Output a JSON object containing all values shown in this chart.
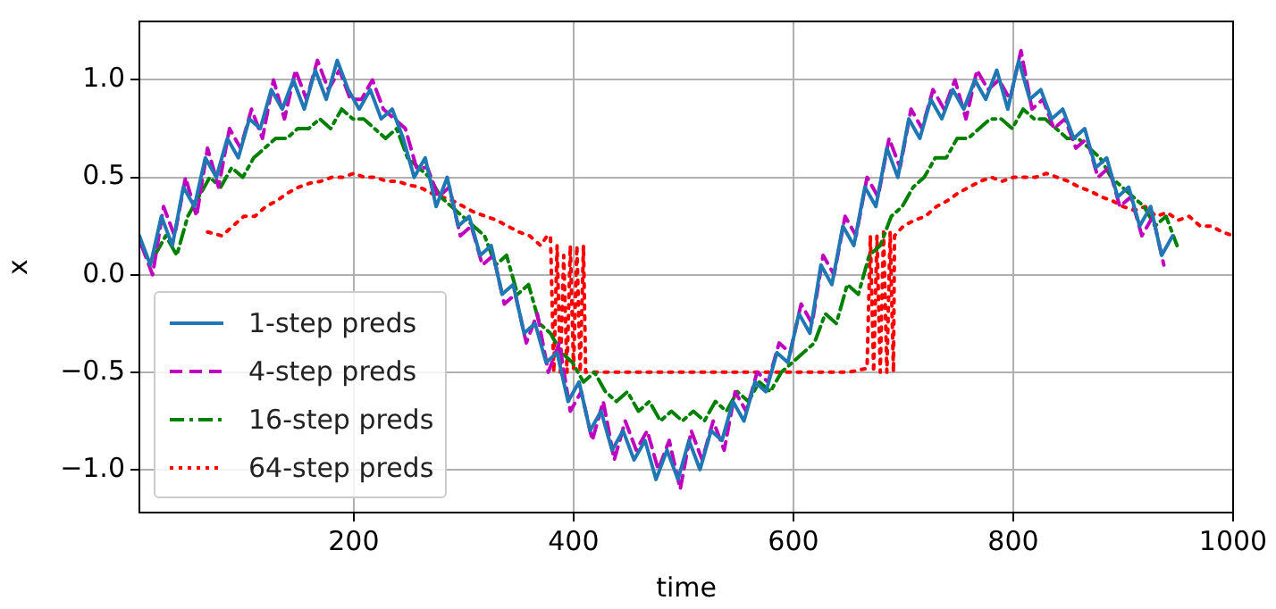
{
  "chart_data": {
    "type": "line",
    "xlabel": "time",
    "ylabel": "x",
    "xlim": [
      5,
      1000
    ],
    "ylim": [
      -1.22,
      1.3
    ],
    "xticks": [
      200,
      400,
      600,
      800,
      1000
    ],
    "yticks": [
      {
        "value": -1,
        "label": "−1.0"
      },
      {
        "value": -0.5,
        "label": "−0.5"
      },
      {
        "value": 0,
        "label": "0.0"
      },
      {
        "value": 0.5,
        "label": "0.5"
      },
      {
        "value": 1,
        "label": "1.0"
      }
    ],
    "grid": true,
    "legend": "bottom left",
    "marker": "none",
    "series": [
      {
        "name": "1-step preds",
        "color": "#1f77b4",
        "line_style": "solid",
        "x": [
          5,
          15,
          25,
          35,
          45,
          55,
          65,
          75,
          85,
          95,
          105,
          115,
          125,
          135,
          145,
          155,
          165,
          175,
          185,
          195,
          205,
          215,
          225,
          235,
          245,
          255,
          265,
          275,
          285,
          295,
          305,
          315,
          325,
          335,
          345,
          355,
          365,
          375,
          385,
          395,
          405,
          415,
          425,
          435,
          445,
          455,
          465,
          475,
          485,
          495,
          505,
          515,
          525,
          535,
          545,
          555,
          565,
          575,
          585,
          595,
          605,
          615,
          625,
          635,
          645,
          655,
          665,
          675,
          685,
          695,
          705,
          715,
          725,
          735,
          745,
          755,
          765,
          775,
          785,
          795,
          805,
          815,
          825,
          835,
          845,
          855,
          865,
          875,
          885,
          895,
          905,
          915,
          925,
          935,
          945
        ],
        "values": [
          0.2,
          0.05,
          0.3,
          0.15,
          0.45,
          0.35,
          0.6,
          0.5,
          0.7,
          0.6,
          0.8,
          0.75,
          0.95,
          0.85,
          1.0,
          0.85,
          1.05,
          0.9,
          1.1,
          0.95,
          0.85,
          0.95,
          0.8,
          0.85,
          0.7,
          0.5,
          0.6,
          0.35,
          0.5,
          0.25,
          0.3,
          0.1,
          0.15,
          -0.1,
          -0.05,
          -0.3,
          -0.25,
          -0.45,
          -0.4,
          -0.65,
          -0.55,
          -0.8,
          -0.7,
          -0.9,
          -0.8,
          -0.95,
          -0.85,
          -1.05,
          -0.9,
          -1.05,
          -0.85,
          -1.0,
          -0.8,
          -0.85,
          -0.65,
          -0.75,
          -0.55,
          -0.6,
          -0.4,
          -0.45,
          -0.2,
          -0.3,
          0.05,
          -0.05,
          0.25,
          0.15,
          0.45,
          0.35,
          0.65,
          0.5,
          0.8,
          0.7,
          0.9,
          0.8,
          0.95,
          0.85,
          1.0,
          0.9,
          1.05,
          0.85,
          1.1,
          0.9,
          0.95,
          0.8,
          0.85,
          0.7,
          0.75,
          0.55,
          0.6,
          0.4,
          0.45,
          0.25,
          0.35,
          0.1,
          0.2
        ]
      },
      {
        "name": "4-step preds",
        "color": "#bf00bf",
        "line_style": "dashed",
        "x": [
          7,
          17,
          27,
          37,
          47,
          57,
          67,
          77,
          87,
          97,
          107,
          117,
          127,
          137,
          147,
          157,
          167,
          177,
          187,
          197,
          207,
          217,
          227,
          237,
          247,
          257,
          267,
          277,
          287,
          297,
          307,
          317,
          327,
          337,
          347,
          357,
          367,
          377,
          387,
          397,
          407,
          417,
          427,
          437,
          447,
          457,
          467,
          477,
          487,
          497,
          507,
          517,
          527,
          537,
          547,
          557,
          567,
          577,
          587,
          597,
          607,
          617,
          627,
          637,
          647,
          657,
          667,
          677,
          687,
          697,
          707,
          717,
          727,
          737,
          747,
          757,
          767,
          777,
          787,
          797,
          807,
          817,
          827,
          837,
          847,
          857,
          867,
          877,
          887,
          897,
          907,
          917,
          927,
          937
        ],
        "values": [
          0.15,
          0.0,
          0.35,
          0.2,
          0.5,
          0.3,
          0.65,
          0.45,
          0.75,
          0.65,
          0.85,
          0.7,
          1.0,
          0.8,
          1.05,
          0.9,
          1.1,
          0.95,
          1.05,
          0.9,
          0.9,
          1.0,
          0.85,
          0.8,
          0.75,
          0.55,
          0.55,
          0.4,
          0.45,
          0.2,
          0.25,
          0.05,
          0.1,
          -0.15,
          -0.1,
          -0.35,
          -0.2,
          -0.5,
          -0.35,
          -0.7,
          -0.6,
          -0.85,
          -0.65,
          -0.95,
          -0.75,
          -0.9,
          -0.8,
          -1.0,
          -0.85,
          -1.1,
          -0.8,
          -0.95,
          -0.75,
          -0.9,
          -0.6,
          -0.7,
          -0.5,
          -0.55,
          -0.35,
          -0.4,
          -0.15,
          -0.25,
          0.1,
          0.0,
          0.3,
          0.2,
          0.5,
          0.4,
          0.7,
          0.55,
          0.85,
          0.75,
          0.95,
          0.85,
          1.0,
          0.8,
          1.05,
          0.95,
          1.0,
          0.9,
          1.15,
          0.85,
          0.9,
          0.75,
          0.8,
          0.65,
          0.7,
          0.5,
          0.55,
          0.35,
          0.4,
          0.2,
          0.3,
          0.05
        ]
      },
      {
        "name": "16-step preds",
        "color": "#008000",
        "line_style": "dashdot",
        "x": [
          19,
          29,
          39,
          49,
          59,
          69,
          79,
          89,
          99,
          109,
          119,
          129,
          139,
          149,
          159,
          169,
          179,
          189,
          199,
          209,
          219,
          229,
          239,
          249,
          259,
          269,
          279,
          289,
          299,
          309,
          319,
          329,
          339,
          349,
          359,
          369,
          379,
          389,
          399,
          409,
          419,
          429,
          439,
          449,
          459,
          469,
          479,
          489,
          499,
          509,
          519,
          529,
          539,
          549,
          559,
          569,
          579,
          589,
          599,
          609,
          619,
          629,
          639,
          649,
          659,
          669,
          679,
          689,
          699,
          709,
          719,
          729,
          739,
          749,
          759,
          769,
          779,
          789,
          799,
          809,
          819,
          829,
          839,
          849,
          859,
          869,
          879,
          889,
          899,
          909,
          919,
          929,
          939,
          949
        ],
        "values": [
          0.1,
          0.2,
          0.1,
          0.3,
          0.4,
          0.5,
          0.45,
          0.55,
          0.5,
          0.6,
          0.65,
          0.7,
          0.7,
          0.75,
          0.75,
          0.8,
          0.75,
          0.85,
          0.8,
          0.8,
          0.75,
          0.7,
          0.75,
          0.6,
          0.55,
          0.5,
          0.4,
          0.35,
          0.3,
          0.25,
          0.2,
          0.05,
          0.1,
          -0.1,
          -0.05,
          -0.25,
          -0.3,
          -0.4,
          -0.45,
          -0.55,
          -0.5,
          -0.6,
          -0.65,
          -0.6,
          -0.7,
          -0.65,
          -0.75,
          -0.7,
          -0.75,
          -0.7,
          -0.75,
          -0.65,
          -0.7,
          -0.6,
          -0.65,
          -0.55,
          -0.6,
          -0.5,
          -0.45,
          -0.4,
          -0.35,
          -0.2,
          -0.25,
          -0.05,
          -0.1,
          0.1,
          0.15,
          0.3,
          0.35,
          0.45,
          0.5,
          0.6,
          0.6,
          0.7,
          0.7,
          0.75,
          0.8,
          0.8,
          0.75,
          0.85,
          0.8,
          0.8,
          0.75,
          0.7,
          0.7,
          0.65,
          0.6,
          0.5,
          0.45,
          0.4,
          0.35,
          0.25,
          0.3,
          0.15
        ]
      },
      {
        "name": "64-step preds",
        "color": "#ff0000",
        "line_style": "dotted",
        "x": [
          67,
          80,
          90,
          100,
          110,
          120,
          130,
          140,
          150,
          160,
          170,
          180,
          190,
          200,
          210,
          220,
          230,
          240,
          250,
          260,
          270,
          280,
          290,
          300,
          310,
          320,
          330,
          340,
          350,
          360,
          370,
          376,
          379,
          382,
          385,
          388,
          391,
          394,
          397,
          400,
          403,
          406,
          409,
          411,
          430,
          500,
          600,
          650,
          667,
          670,
          673,
          676,
          679,
          682,
          685,
          688,
          691,
          692,
          700,
          710,
          720,
          730,
          740,
          750,
          760,
          770,
          780,
          790,
          800,
          810,
          820,
          830,
          840,
          850,
          860,
          870,
          880,
          890,
          900,
          910,
          920,
          930,
          940,
          950,
          960,
          970,
          980,
          990,
          1000
        ],
        "values": [
          0.22,
          0.2,
          0.25,
          0.3,
          0.3,
          0.35,
          0.38,
          0.42,
          0.45,
          0.47,
          0.48,
          0.5,
          0.5,
          0.52,
          0.5,
          0.5,
          0.48,
          0.48,
          0.46,
          0.45,
          0.42,
          0.4,
          0.38,
          0.35,
          0.32,
          0.3,
          0.28,
          0.25,
          0.22,
          0.2,
          0.15,
          0.2,
          0.2,
          -0.5,
          0.15,
          -0.5,
          0.1,
          -0.5,
          0.15,
          -0.48,
          0.15,
          -0.5,
          0.15,
          -0.5,
          -0.5,
          -0.5,
          -0.5,
          -0.5,
          -0.48,
          0.2,
          -0.5,
          0.2,
          -0.5,
          0.22,
          -0.5,
          0.22,
          -0.5,
          0.2,
          0.25,
          0.28,
          0.3,
          0.35,
          0.38,
          0.42,
          0.45,
          0.48,
          0.5,
          0.48,
          0.5,
          0.5,
          0.5,
          0.52,
          0.5,
          0.48,
          0.45,
          0.43,
          0.4,
          0.38,
          0.35,
          0.33,
          0.35,
          0.3,
          0.32,
          0.28,
          0.3,
          0.25,
          0.25,
          0.22,
          0.2
        ]
      }
    ]
  }
}
